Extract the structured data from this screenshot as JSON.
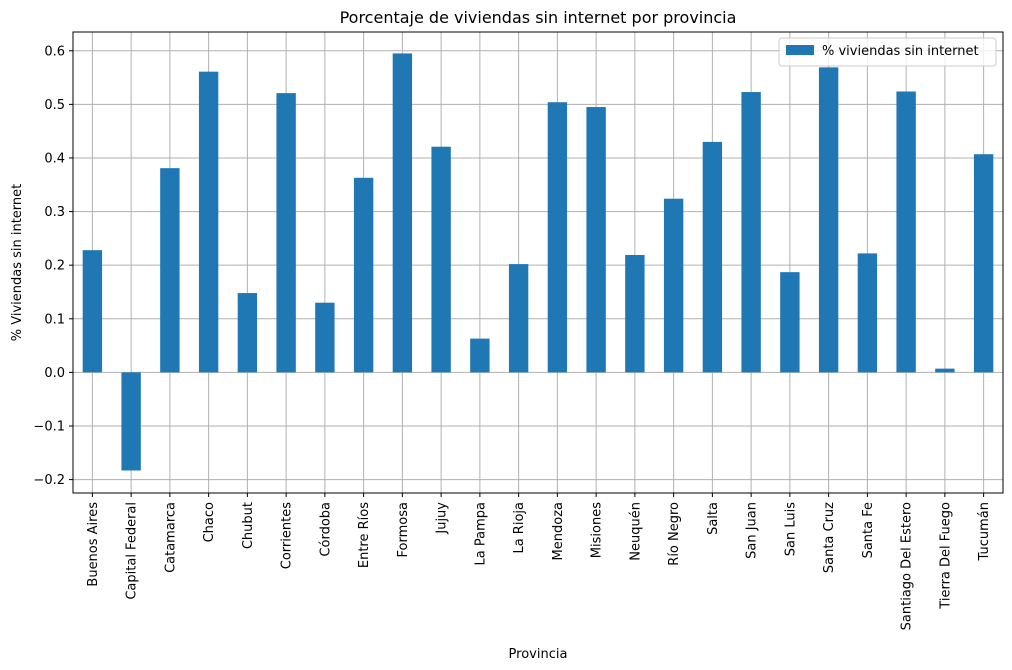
{
  "chart_data": {
    "type": "bar",
    "title": "Porcentaje de viviendas sin internet por provincia",
    "xlabel": "Provincia",
    "ylabel": "% Viviendas sin internet",
    "ylim": [
      -0.225,
      0.635
    ],
    "yticks": [
      -0.2,
      -0.1,
      0.0,
      0.1,
      0.2,
      0.3,
      0.4,
      0.5,
      0.6
    ],
    "ytick_labels": [
      "−0.2",
      "−0.1",
      "0.0",
      "0.1",
      "0.2",
      "0.3",
      "0.4",
      "0.5",
      "0.6"
    ],
    "grid": true,
    "legend_position": "top-right",
    "categories": [
      "Buenos Aires",
      "Capital Federal",
      "Catamarca",
      "Chaco",
      "Chubut",
      "Corrientes",
      "Córdoba",
      "Entre Ríos",
      "Formosa",
      "Jujuy",
      "La Pampa",
      "La Rioja",
      "Mendoza",
      "Misiones",
      "Neuquén",
      "Río Negro",
      "Salta",
      "San Juan",
      "San Luis",
      "Santa Cruz",
      "Santa Fe",
      "Santiago Del Estero",
      "Tierra Del Fuego",
      "Tucumán"
    ],
    "series": [
      {
        "name": "% viviendas sin internet",
        "color": "#1f77b4",
        "values": [
          0.228,
          -0.183,
          0.381,
          0.561,
          0.148,
          0.521,
          0.13,
          0.363,
          0.595,
          0.421,
          0.063,
          0.202,
          0.504,
          0.495,
          0.219,
          0.324,
          0.43,
          0.523,
          0.187,
          0.569,
          0.222,
          0.524,
          0.007,
          0.407
        ]
      }
    ]
  }
}
